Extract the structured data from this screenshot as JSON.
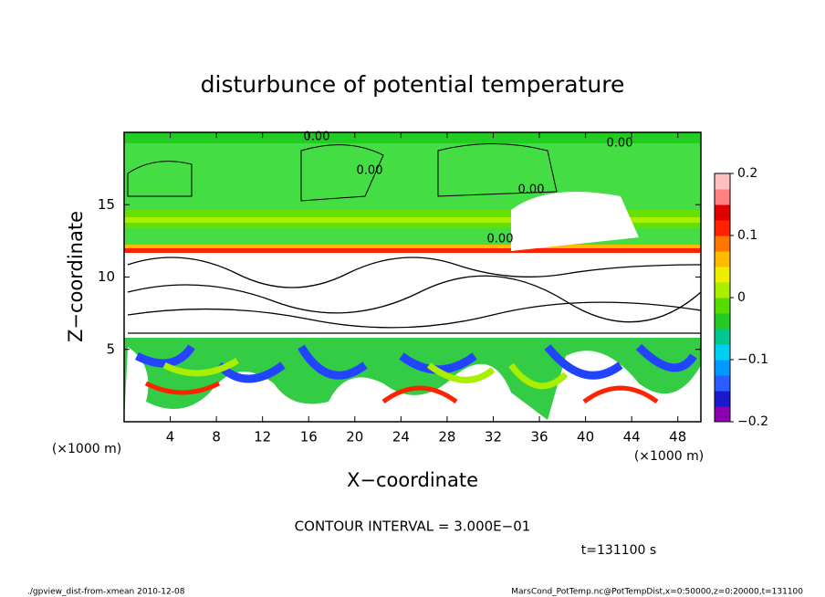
{
  "chart_data": {
    "type": "contour",
    "title": "disturbunce of potential temperature",
    "xlabel": "X−coordinate",
    "ylabel": "Z−coordinate",
    "xunit": "(×1000 m)",
    "yunit": "(×1000 m)",
    "xlim": [
      0,
      50
    ],
    "xticks": [
      4,
      8,
      12,
      16,
      20,
      24,
      28,
      32,
      36,
      40,
      44,
      48
    ],
    "ylim": [
      0,
      20
    ],
    "yticks": [
      5,
      10,
      15
    ],
    "clim": [
      -0.2,
      0.2
    ],
    "cticks": [
      0.2,
      0.1,
      0,
      {
        "value": -0.1,
        "label": "−0.1"
      },
      {
        "value": -0.2,
        "label": "−0.2"
      }
    ],
    "colormap": [
      "#8a00b0",
      "#1a1acc",
      "#2b5cff",
      "#0099ff",
      "#00d0f0",
      "#00c890",
      "#22cc22",
      "#55dd00",
      "#aaee00",
      "#eeee00",
      "#ffbb00",
      "#ff7700",
      "#ff2200",
      "#e00000",
      "#ff8080",
      "#ffc0c0"
    ],
    "contour_labels": [
      "0.00",
      "0.00",
      "0.00",
      "0.00",
      "0.00"
    ],
    "contour_interval": "CONTOUR INTERVAL = 3.000E−01",
    "time": "t=131100 s",
    "footer_left": "./gpview_dist-from-xmean  2010-12-08",
    "footer_right": "MarsCond_PotTemp.nc@PotTempDist,x=0:50000,z=0:20000,t=131100"
  }
}
